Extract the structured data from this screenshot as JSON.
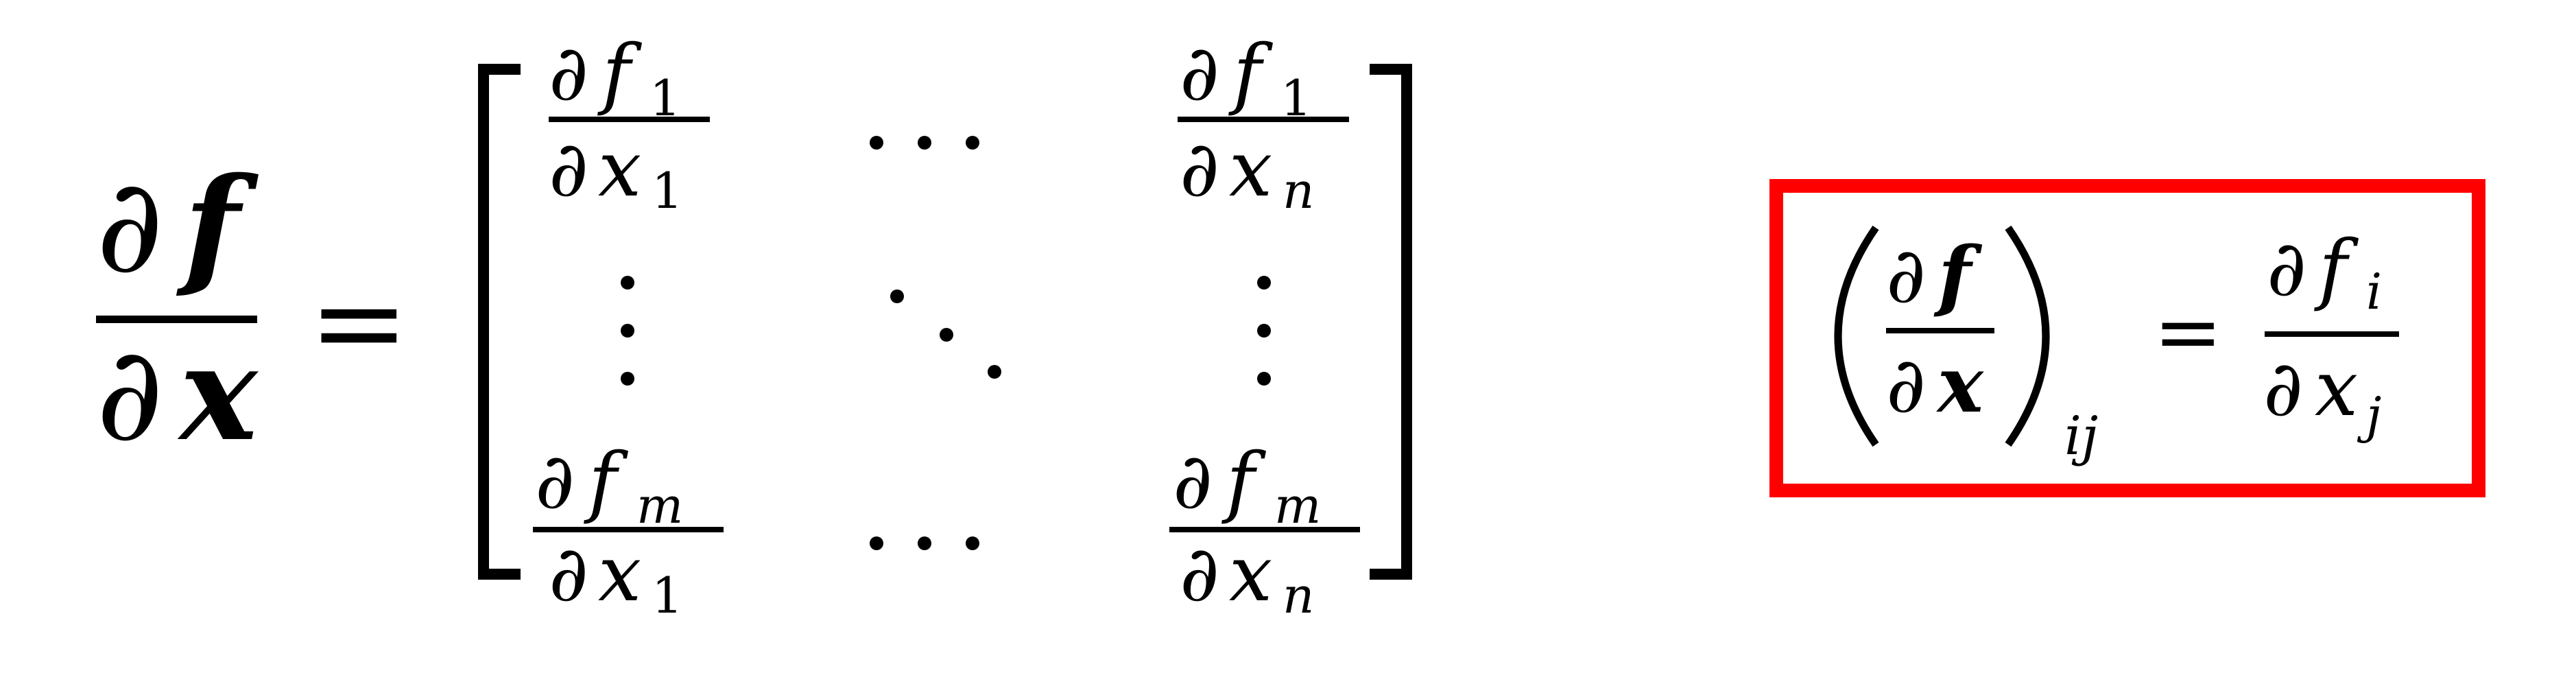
{
  "lhs": {
    "num_partial": "∂",
    "num_var": "f",
    "den_partial": "∂",
    "den_var": "x",
    "equals": "="
  },
  "matrix": {
    "top_left": {
      "num_partial": "∂",
      "num_var": "f",
      "num_sub": "1",
      "den_partial": "∂",
      "den_var": "x",
      "den_sub": "1"
    },
    "top_right": {
      "num_partial": "∂",
      "num_var": "f",
      "num_sub": "1",
      "den_partial": "∂",
      "den_var": "x",
      "den_sub": "n"
    },
    "bottom_left": {
      "num_partial": "∂",
      "num_var": "f",
      "num_sub": "m",
      "den_partial": "∂",
      "den_var": "x",
      "den_sub": "1"
    },
    "bottom_right": {
      "num_partial": "∂",
      "num_var": "f",
      "num_sub": "m",
      "den_partial": "∂",
      "den_var": "x",
      "den_sub": "n"
    }
  },
  "boxed": {
    "num_partial": "∂",
    "num_var": "f",
    "den_partial": "∂",
    "den_var": "x",
    "paren_sub": "ij",
    "equals": "=",
    "rhs_num_partial": "∂",
    "rhs_num_var": "f",
    "rhs_num_sub": "i",
    "rhs_den_partial": "∂",
    "rhs_den_var": "x",
    "rhs_den_sub": "j",
    "border_color": "#ff0000"
  }
}
